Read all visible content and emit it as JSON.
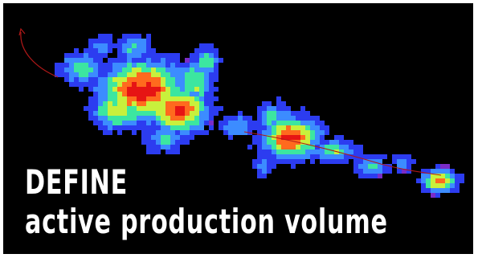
{
  "text": {
    "line1": "DEFINE",
    "line2": "active production volume"
  },
  "colors": {
    "background": "#000000",
    "frame": "#ffffff",
    "text": "#ffffff",
    "trajectory": "#b01818",
    "heat_low": "#2c3cf0",
    "heat_mid_low": "#3c8cff",
    "heat_mid": "#3ce6a0",
    "heat_mid_high": "#c8f03c",
    "heat_high": "#ff6a1e",
    "heat_peak": "#e61414",
    "heat_edge": "#7a2cc8"
  },
  "graphic": {
    "description_icon": "heatmap-cluster-graphic",
    "trajectory_icon": "trajectory-curve-icon"
  }
}
